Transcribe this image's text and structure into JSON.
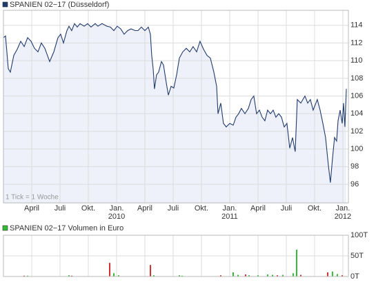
{
  "chart_data": [
    {
      "type": "line",
      "title": "SPANIEN 02−17 (Düsseldorf)",
      "note": "1 Tick = 1 Woche",
      "series": [
        {
          "name": "SPANIEN 02−17 (Düsseldorf)",
          "color": "#1f3a6e",
          "fill": "#eef0fa",
          "x": [
            0,
            0.22,
            0.51,
            0.73,
            1.1,
            1.46,
            1.83,
            2.2,
            2.56,
            2.93,
            3.29,
            3.66,
            4.02,
            4.39,
            4.9,
            5.34,
            5.78,
            6.07,
            6.37,
            6.73,
            6.95,
            7.24,
            7.54,
            7.83,
            8.12,
            8.56,
            8.93,
            9.29,
            9.73,
            10.02,
            10.46,
            10.98,
            11.34,
            11.71,
            12.07,
            12.44,
            12.8,
            13.17,
            13.54,
            13.98,
            14.27,
            14.63,
            15.0,
            15.37,
            15.59,
            15.73,
            15.88,
            16.02,
            16.24,
            16.46,
            16.76,
            16.98,
            17.27,
            17.49,
            17.78,
            18.07,
            18.37,
            18.66,
            19.02,
            19.39,
            19.76,
            20.12,
            20.49,
            20.85,
            21.22,
            21.59,
            21.95,
            22.32,
            22.61,
            22.76,
            23.05,
            23.34,
            23.63,
            24.0,
            24.37,
            24.66,
            24.95,
            25.24,
            25.61,
            25.98,
            26.27,
            26.56,
            26.85,
            27.15,
            27.44,
            27.73,
            28.02,
            28.32,
            28.61,
            28.9,
            29.2,
            29.49,
            29.78,
            30.07,
            30.37,
            30.66,
            30.95,
            31.17,
            31.54,
            31.98,
            32.27,
            32.56,
            32.85,
            33.29,
            33.59,
            33.88,
            34.17,
            34.46,
            34.68,
            34.9,
            35.12,
            35.34,
            35.49,
            35.71,
            35.93,
            36.07,
            36.22,
            36.37
          ],
          "values": [
            112.6,
            112.8,
            109.1,
            108.7,
            110.6,
            111.3,
            112.2,
            111.6,
            112.6,
            112.2,
            111.4,
            111.0,
            112.0,
            111.4,
            109.9,
            111.0,
            112.6,
            113.0,
            112.0,
            113.4,
            113.9,
            113.4,
            114.2,
            113.8,
            114.2,
            113.9,
            114.2,
            113.8,
            114.2,
            113.9,
            114.2,
            113.9,
            113.8,
            113.4,
            113.9,
            113.6,
            113.0,
            113.4,
            113.6,
            113.4,
            113.4,
            113.8,
            113.4,
            113.8,
            113.0,
            110.6,
            109.1,
            106.8,
            108.4,
            108.7,
            109.9,
            109.5,
            107.5,
            106.1,
            107.1,
            106.9,
            108.4,
            110.3,
            111.0,
            111.4,
            111.0,
            111.6,
            111.0,
            112.2,
            111.3,
            110.6,
            110.3,
            108.7,
            107.1,
            104.0,
            105.2,
            102.9,
            102.5,
            102.9,
            102.7,
            103.6,
            104.0,
            104.6,
            104.0,
            104.6,
            105.6,
            106.0,
            104.0,
            104.4,
            103.6,
            103.2,
            104.4,
            104.0,
            104.4,
            103.6,
            104.0,
            103.6,
            102.5,
            102.9,
            100.1,
            101.3,
            99.7,
            105.6,
            105.2,
            106.0,
            105.2,
            105.6,
            104.4,
            105.6,
            104.4,
            102.9,
            101.3,
            98.2,
            96.2,
            98.9,
            101.3,
            100.9,
            103.2,
            104.4,
            102.9,
            105.2,
            102.5,
            106.8
          ]
        }
      ],
      "xlim": [
        0,
        36.59
      ],
      "ylim": [
        93.9,
        115.7
      ],
      "xticks": [
        {
          "value": 3,
          "label": "April"
        },
        {
          "value": 6,
          "label": "Juli"
        },
        {
          "value": 9,
          "label": "Okt."
        },
        {
          "value": 12,
          "label": "Jan.",
          "sublabel": "2010"
        },
        {
          "value": 15,
          "label": "April"
        },
        {
          "value": 18,
          "label": "Juli"
        },
        {
          "value": 21,
          "label": "Okt."
        },
        {
          "value": 24,
          "label": "Jan.",
          "sublabel": "2011"
        },
        {
          "value": 27,
          "label": "April"
        },
        {
          "value": 30,
          "label": "Juli"
        },
        {
          "value": 33,
          "label": "Okt."
        },
        {
          "value": 36,
          "label": "Jan.",
          "sublabel": "2012"
        }
      ],
      "yticks": [
        96,
        98,
        100,
        102,
        104,
        106,
        108,
        110,
        112,
        114
      ],
      "grid": true
    },
    {
      "type": "bar",
      "title": "SPANIEN 02−17 Volumen in Euro",
      "series": [
        {
          "name": "SPANIEN 02−17 Volumen in Euro",
          "color": "#33bb33",
          "x": [
            2.2,
            2.56,
            6.95,
            7.24,
            11.27,
            11.71,
            12.22,
            15.59,
            15.95,
            18.66,
            18.95,
            23.05,
            24.37,
            24.88,
            25.68,
            26.05,
            27.0,
            28.02,
            28.54,
            29.05,
            29.63,
            30.73,
            31.1,
            31.54,
            34.39,
            34.9,
            35.41,
            35.93
          ],
          "values": [
            2000,
            2000,
            3000,
            2000,
            33000,
            8000,
            3000,
            28000,
            3000,
            3000,
            2000,
            3000,
            10000,
            4000,
            5000,
            3000,
            3000,
            5000,
            4000,
            3000,
            4000,
            8000,
            65000,
            4000,
            10000,
            12000,
            6000,
            3000
          ],
          "colors": [
            "#d03030",
            "#33bb33",
            "#33bb33",
            "#d03030",
            "#d03030",
            "#33bb33",
            "#33bb33",
            "#d03030",
            "#33bb33",
            "#33bb33",
            "#33bb33",
            "#d03030",
            "#33bb33",
            "#33bb33",
            "#d03030",
            "#33bb33",
            "#33bb33",
            "#33bb33",
            "#33bb33",
            "#d03030",
            "#33bb33",
            "#33bb33",
            "#33bb33",
            "#d03030",
            "#d03030",
            "#33bb33",
            "#33bb33",
            "#d03030"
          ]
        }
      ],
      "xlim": [
        0,
        36.59
      ],
      "ylim": [
        0,
        100000
      ],
      "xticks": [
        3,
        6,
        9,
        12,
        15,
        18,
        21,
        24,
        27,
        30,
        33,
        36
      ],
      "yticks": [
        {
          "value": 0,
          "label": "0T"
        },
        {
          "value": 50000,
          "label": "50T"
        },
        {
          "value": 100000,
          "label": "100T"
        }
      ],
      "grid": true
    }
  ]
}
